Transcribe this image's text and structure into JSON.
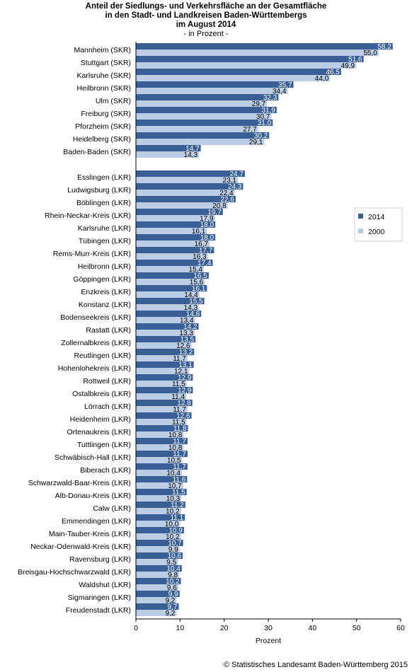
{
  "chart_data": {
    "type": "bar",
    "orientation": "horizontal",
    "title_lines": [
      "Anteil der Siedlungs- und Verkehrsfläche an der Gesamtfläche",
      "in den Stadt- und Landkreisen Baden-Württembergs",
      "im August 2014"
    ],
    "subtitle": "- in Prozent -",
    "xlabel": "Prozent",
    "xlim": [
      0,
      60
    ],
    "xticks": [
      "0",
      "10",
      "20",
      "30",
      "40",
      "50",
      "60"
    ],
    "legend_position": "right",
    "grid": false,
    "groups": [
      {
        "categories": [
          "Mannheim (SKR)",
          "Stuttgart (SKR)",
          "Karlsruhe (SKR)",
          "Heilbronn (SKR)",
          "Ulm (SKR)",
          "Freiburg (SKR)",
          "Pforzheim (SKR)",
          "Heidelberg (SKR)",
          "Baden-Baden (SKR)"
        ],
        "v2014": [
          58.2,
          51.6,
          46.5,
          35.7,
          32.3,
          31.9,
          31.0,
          30.2,
          14.7
        ],
        "v2000": [
          55.0,
          49.9,
          44.0,
          34.4,
          29.7,
          30.7,
          27.7,
          29.1,
          14.3
        ],
        "labels2014": [
          "58,2",
          "51,6",
          "46,5",
          "35,7",
          "32,3",
          "31,9",
          "31,0",
          "30,2",
          "14,7"
        ],
        "labels2000": [
          "55,0",
          "49,9",
          "44,0",
          "34,4",
          "29,7",
          "30,7",
          "27,7",
          "29,1",
          "14,3"
        ]
      },
      {
        "categories": [
          "Esslingen (LKR)",
          "Ludwigsburg (LKR)",
          "Böblingen (LKR)",
          "Rhein-Neckar-Kreis (LKR)",
          "Karlsruhe (LKR)",
          "Tübingen (LKR)",
          "Rems-Murr-Kreis (LKR)",
          "Heilbronn (LKR)",
          "Göppingen (LKR)",
          "Enzkreis (LKR)",
          "Konstanz (LKR)",
          "Bodenseekreis (LKR)",
          "Rastatt (LKR)",
          "Zollernalbkreis (LKR)",
          "Reutlingen (LKR)",
          "Hohenlohekreis (LKR)",
          "Rottweil (LKR)",
          "Ostalbkreis (LKR)",
          "Lörrach (LKR)",
          "Heidenheim (LKR)",
          "Ortenaukreis (LKR)",
          "Tuttlingen (LKR)",
          "Schwäbisch-Hall (LKR)",
          "Biberach (LKR)",
          "Schwarzwald-Baar-Kreis (LKR)",
          "Alb-Donau-Kreis (LKR)",
          "Calw (LKR)",
          "Emmendingen (LKR)",
          "Main-Tauber-Kreis (LKR)",
          "Neckar-Odenwald-Kreis (LKR)",
          "Ravensburg (LKR)",
          "Breisgau-Hochschwarzwald (LKR)",
          "Waldshut (LKR)",
          "Sigmaringen (LKR)",
          "Freudenstadt (LKR)"
        ],
        "v2014": [
          24.7,
          24.3,
          22.6,
          19.7,
          18.0,
          18.0,
          17.7,
          17.4,
          16.5,
          16.1,
          15.5,
          14.8,
          14.2,
          13.5,
          13.2,
          13.1,
          12.9,
          12.9,
          12.8,
          12.6,
          11.8,
          11.7,
          11.7,
          11.7,
          11.6,
          11.5,
          11.2,
          11.1,
          10.9,
          10.7,
          10.6,
          10.4,
          10.2,
          9.9,
          9.7
        ],
        "v2000": [
          23.1,
          22.4,
          20.8,
          17.9,
          16.1,
          16.7,
          16.3,
          15.4,
          15.6,
          14.4,
          14.3,
          13.4,
          13.3,
          12.6,
          11.7,
          12.1,
          11.5,
          11.4,
          11.7,
          11.5,
          10.8,
          10.8,
          10.5,
          10.4,
          10.7,
          10.3,
          10.2,
          10.0,
          10.2,
          9.9,
          9.5,
          9.8,
          9.6,
          9.2,
          9.2
        ],
        "labels2014": [
          "24,7",
          "24,3",
          "22,6",
          "19,7",
          "18,0",
          "18,0",
          "17,7",
          "17,4",
          "16,5",
          "16,1",
          "15,5",
          "14,8",
          "14,2",
          "13,5",
          "13,2",
          "13,1",
          "12,9",
          "12,9",
          "12,8",
          "12,6",
          "11,8",
          "11,7",
          "11,7",
          "11,7",
          "11,6",
          "11,5",
          "11,2",
          "11,1",
          "10,9",
          "10,7",
          "10,6",
          "10,4",
          "10,2",
          "9,9",
          "9,7"
        ],
        "labels2000": [
          "23,1",
          "22,4",
          "20,8",
          "17,9",
          "16,1",
          "16,7",
          "16,3",
          "15,4",
          "15,6",
          "14,4",
          "14,3",
          "13,4",
          "13,3",
          "12,6",
          "11,7",
          "12,1",
          "11,5",
          "11,4",
          "11,7",
          "11,5",
          "10,8",
          "10,8",
          "10,5",
          "10,4",
          "10,7",
          "10,3",
          "10,2",
          "10,0",
          "10,2",
          "9,9",
          "9,5",
          "9,8",
          "9,6",
          "9,2",
          "9,2"
        ]
      }
    ],
    "series": [
      {
        "name": "2014",
        "color": "#3a5f94"
      },
      {
        "name": "2000",
        "color": "#bccde6"
      }
    ]
  },
  "footer": "© Statistisches Landesamt Baden-Württemberg 2015"
}
